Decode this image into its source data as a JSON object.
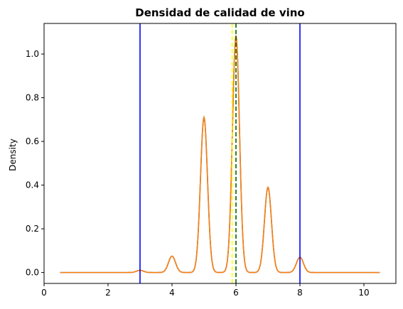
{
  "chart_data": {
    "type": "line",
    "title": "Densidad de calidad de vino",
    "xlabel": "",
    "ylabel": "Density",
    "xlim": [
      0,
      11
    ],
    "ylim": [
      -0.05,
      1.14
    ],
    "x_ticks": [
      0,
      2,
      4,
      6,
      8,
      10
    ],
    "y_ticks": [
      0.0,
      0.2,
      0.4,
      0.6,
      0.8,
      1.0
    ],
    "x_tick_labels": [
      "0",
      "2",
      "4",
      "6",
      "8",
      "10"
    ],
    "y_tick_labels": [
      "0.0",
      "0.2",
      "0.4",
      "0.6",
      "0.8",
      "1.0"
    ],
    "grid": false,
    "density_peaks": [
      {
        "x": 3,
        "y": 0.01
      },
      {
        "x": 4,
        "y": 0.075
      },
      {
        "x": 5,
        "y": 0.71
      },
      {
        "x": 6,
        "y": 1.085
      },
      {
        "x": 7,
        "y": 0.39
      },
      {
        "x": 8,
        "y": 0.07
      }
    ],
    "density_x_range": [
      0.5,
      10.5
    ],
    "kernel_bandwidth": 0.11,
    "series": [
      {
        "color": "#1f77b4"
      },
      {
        "color": "#ff7f0e"
      }
    ],
    "reference_lines": [
      {
        "x": 3,
        "color": "#0000ff",
        "style": "solid"
      },
      {
        "x": 8,
        "color": "#0000ff",
        "style": "solid"
      },
      {
        "x": 5.88,
        "color": "#ffff00",
        "style": "dashed"
      },
      {
        "x": 6.0,
        "color": "#006400",
        "style": "dashed"
      }
    ]
  }
}
